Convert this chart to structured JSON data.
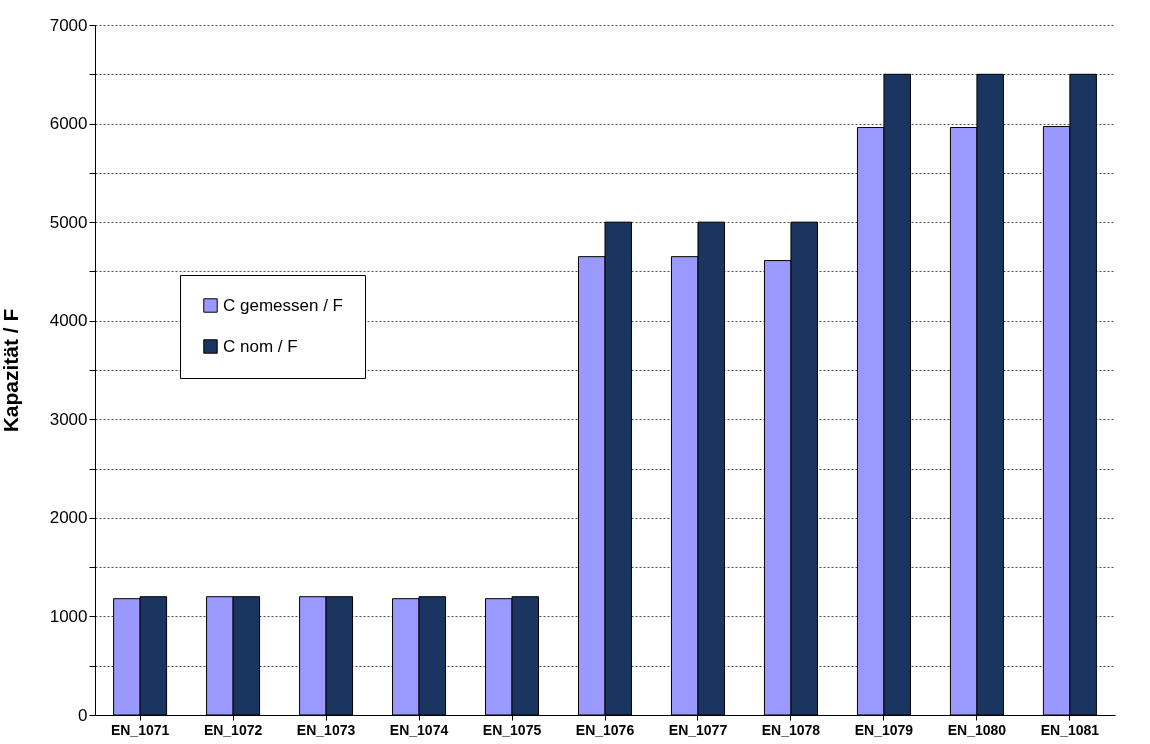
{
  "chart_data": {
    "type": "bar",
    "ylabel": "Kapazität / F",
    "categories": [
      "EN_1071",
      "EN_1072",
      "EN_1073",
      "EN_1074",
      "EN_1075",
      "EN_1076",
      "EN_1077",
      "EN_1078",
      "EN_1079",
      "EN_1080",
      "EN_1081"
    ],
    "series": [
      {
        "name": "C gemessen / F",
        "color": "#9999ff",
        "values": [
          1180,
          1200,
          1200,
          1180,
          1180,
          4650,
          4650,
          4610,
          5960,
          5960,
          5970
        ]
      },
      {
        "name": "C nom / F",
        "color": "#1a3660",
        "values": [
          1200,
          1200,
          1200,
          1200,
          1200,
          5000,
          5000,
          5000,
          6500,
          6500,
          6500
        ]
      }
    ],
    "ylim": [
      0,
      7000
    ],
    "yticks": [
      0,
      {
        "value": 500,
        "label": null
      },
      1000,
      {
        "value": 1500,
        "label": null
      },
      2000,
      {
        "value": 2500,
        "label": null
      },
      3000,
      {
        "value": 3500,
        "label": null
      },
      4000,
      {
        "value": 4500,
        "label": null
      },
      5000,
      {
        "value": 5500,
        "label": null
      },
      6000,
      {
        "value": 6500,
        "label": null
      },
      7000
    ],
    "grid": "y",
    "legend": "left"
  }
}
